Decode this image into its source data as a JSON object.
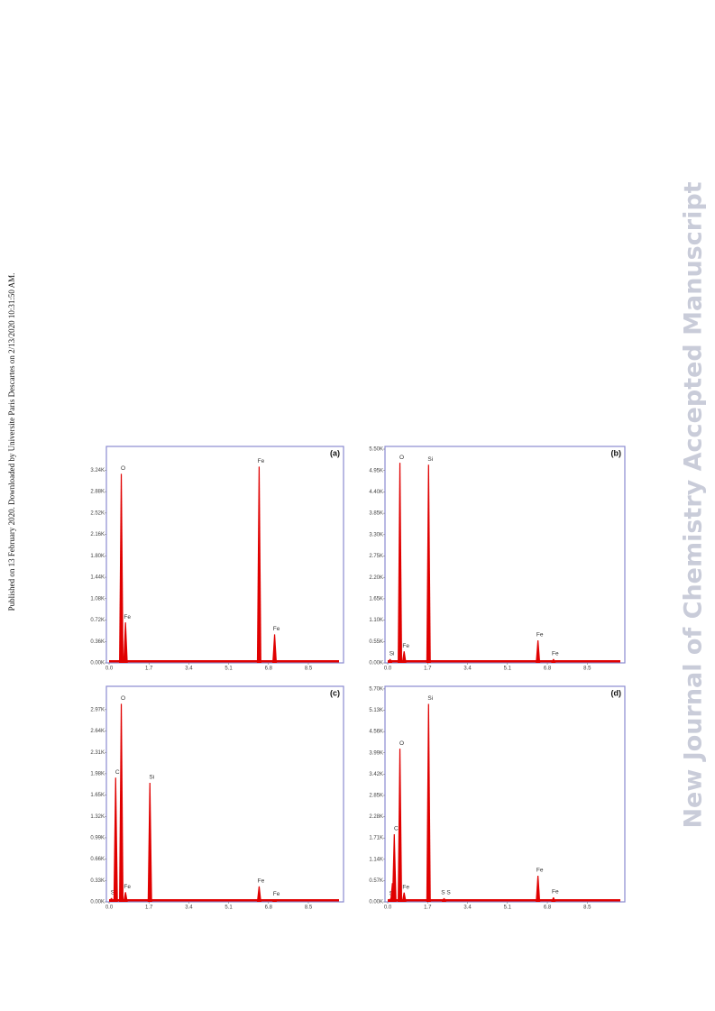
{
  "side_note": "Published on 13 February 2020. Downloaded by Universite Paris Descartes on 2/13/2020 10:31:50 AM.",
  "watermark": "New Journal of Chemistry Accepted Manuscript",
  "chart_data": [
    {
      "type": "area",
      "title": "(a)",
      "xlim": [
        0,
        10
      ],
      "ylim": [
        0,
        3640
      ],
      "xticks": [
        {
          "value": 0,
          "label": "0.0"
        },
        1.7,
        3.4,
        5.1,
        6.8,
        8.5
      ],
      "yticks": [
        {
          "value": 0,
          "label": "0.00K"
        },
        {
          "value": 360,
          "label": "0.36K"
        },
        {
          "value": 720,
          "label": "0.72K"
        },
        {
          "value": 1080,
          "label": "1.08K"
        },
        {
          "value": 1440,
          "label": "1.44K"
        },
        {
          "value": 1800,
          "label": "1.80K"
        },
        {
          "value": 2160,
          "label": "2.16K"
        },
        {
          "value": 2520,
          "label": "2.52K"
        },
        {
          "value": 2880,
          "label": "2.88K"
        },
        {
          "value": 3240,
          "label": "3.24K"
        }
      ],
      "color": "#e00000",
      "x": [
        0.52,
        0.7,
        6.4,
        7.06
      ],
      "values": [
        3180,
        680,
        3300,
        480
      ],
      "peak_labels": [
        "O",
        "Fe",
        "Fe",
        "Fe"
      ]
    },
    {
      "type": "area",
      "title": "(b)",
      "xlim": [
        0,
        10.1
      ],
      "ylim": [
        0,
        5570
      ],
      "xticks": [
        {
          "value": 0,
          "label": "0.0"
        },
        1.7,
        3.4,
        5.1,
        6.8,
        8.5
      ],
      "yticks": [
        {
          "value": 0,
          "label": "0.00K"
        },
        {
          "value": 550,
          "label": "0.55K"
        },
        {
          "value": 1100,
          "label": "1.10K"
        },
        {
          "value": 1650,
          "label": "1.65K"
        },
        {
          "value": 2200,
          "label": "2.20K"
        },
        {
          "value": 2750,
          "label": "2.75K"
        },
        {
          "value": 3300,
          "label": "3.30K"
        },
        {
          "value": 3850,
          "label": "3.85K"
        },
        {
          "value": 4400,
          "label": "4.40K"
        },
        {
          "value": 4950,
          "label": "4.95K"
        },
        {
          "value": 5500,
          "label": "5.50K"
        }
      ],
      "color": "#e00000",
      "x": [
        0.1,
        0.52,
        0.7,
        1.74,
        6.4,
        7.06
      ],
      "values": [
        100,
        5150,
        300,
        5100,
        580,
        100
      ],
      "peak_labels": [
        "Si",
        "O",
        "Fe",
        "Si",
        "Fe",
        "Fe"
      ]
    },
    {
      "type": "area",
      "title": "(c)",
      "xlim": [
        0,
        10
      ],
      "ylim": [
        0,
        3330
      ],
      "xticks": [
        {
          "value": 0,
          "label": "0.0"
        },
        1.7,
        3.4,
        5.1,
        6.8,
        8.5
      ],
      "yticks": [
        {
          "value": 0,
          "label": "0.00K"
        },
        {
          "value": 330,
          "label": "0.33K"
        },
        {
          "value": 660,
          "label": "0.66K"
        },
        {
          "value": 990,
          "label": "0.99K"
        },
        {
          "value": 1320,
          "label": "1.32K"
        },
        {
          "value": 1650,
          "label": "1.65K"
        },
        {
          "value": 1980,
          "label": "1.98K"
        },
        {
          "value": 2310,
          "label": "2.31K"
        },
        {
          "value": 2640,
          "label": "2.64K"
        },
        {
          "value": 2970,
          "label": "2.97K"
        }
      ],
      "color": "#e00000",
      "x": [
        0.1,
        0.28,
        0.52,
        0.7,
        1.74,
        6.4,
        7.06
      ],
      "values": [
        60,
        1920,
        3060,
        150,
        1840,
        240,
        40
      ],
      "peak_labels": [
        "Si",
        "C",
        "O",
        "Fe",
        "Si",
        "Fe",
        "Fe"
      ]
    },
    {
      "type": "area",
      "title": "(d)",
      "xlim": [
        0,
        10.1
      ],
      "ylim": [
        0,
        5770
      ],
      "xticks": [
        {
          "value": 0,
          "label": "0.0"
        },
        1.7,
        3.4,
        5.1,
        6.8,
        8.5
      ],
      "yticks": [
        {
          "value": 0,
          "label": "0.00K"
        },
        {
          "value": 570,
          "label": "0.57K"
        },
        {
          "value": 1140,
          "label": "1.14K"
        },
        {
          "value": 1710,
          "label": "1.71K"
        },
        {
          "value": 2280,
          "label": "2.28K"
        },
        {
          "value": 2850,
          "label": "2.85K"
        },
        {
          "value": 3420,
          "label": "3.42K"
        },
        {
          "value": 3990,
          "label": "3.99K"
        },
        {
          "value": 4560,
          "label": "4.56K"
        },
        {
          "value": 5130,
          "label": "5.13K"
        },
        {
          "value": 5700,
          "label": "5.70K"
        }
      ],
      "color": "#e00000",
      "x": [
        0.1,
        0.2,
        0.28,
        0.52,
        0.7,
        1.74,
        2.4,
        6.4,
        7.06
      ],
      "values": [
        80,
        500,
        1810,
        4100,
        250,
        5300,
        100,
        700,
        120
      ],
      "peak_labels": [
        "Si",
        "S",
        "C",
        "O",
        "Fe",
        "Si",
        "S S",
        "Fe",
        "Fe"
      ]
    }
  ]
}
